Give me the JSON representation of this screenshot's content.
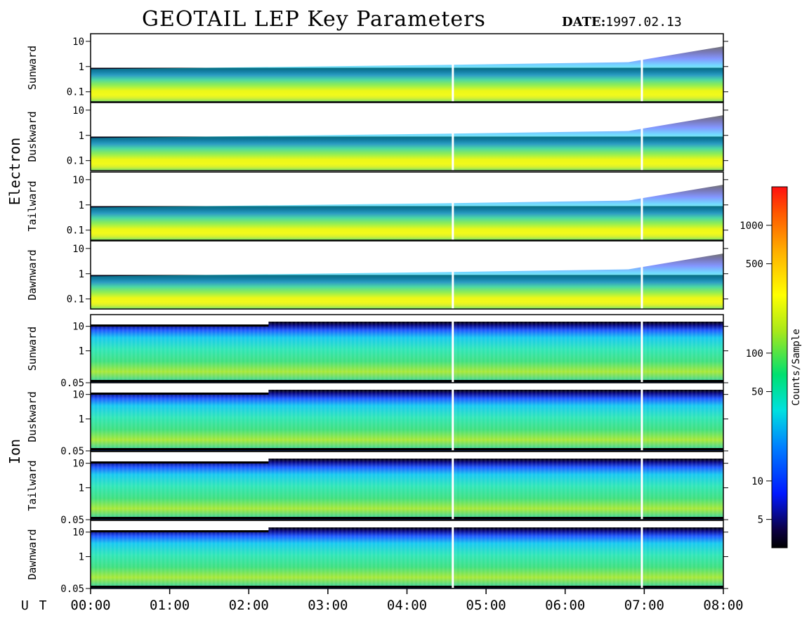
{
  "header": {
    "title": "GEOTAIL LEP Key Parameters",
    "date_label": "DATE:",
    "date_value": "1997.02.13"
  },
  "chart_data": {
    "type": "heatmap",
    "title": "GEOTAIL LEP Key Parameters",
    "x_axis": {
      "label": "U T",
      "ticks": [
        "00:00",
        "01:00",
        "02:00",
        "03:00",
        "04:00",
        "05:00",
        "06:00",
        "07:00",
        "08:00"
      ],
      "range_hours": [
        0,
        8
      ]
    },
    "groups": [
      {
        "name": "Electron",
        "y_ticks": [
          "10",
          "1",
          "0.1"
        ],
        "y_range": [
          0.04,
          20
        ],
        "y_scale": "log",
        "panels": [
          "Sunward",
          "Duskward",
          "Tailward",
          "Dawnward"
        ]
      },
      {
        "name": "Ion",
        "y_ticks": [
          "10",
          "1",
          "0.05"
        ],
        "y_range": [
          0.05,
          30
        ],
        "y_scale": "log",
        "panels": [
          "Sunward",
          "Duskward",
          "Tailward",
          "Dawnward"
        ]
      }
    ],
    "data_gaps_hours": [
      4.58,
      6.97
    ],
    "colorbar": {
      "label": "Counts/Sample",
      "scale": "log",
      "range": [
        3,
        2000
      ],
      "ticks": [
        "1000",
        "500",
        "100",
        "50",
        "10",
        "5"
      ],
      "tick_values": [
        1000,
        500,
        100,
        50,
        10,
        5
      ]
    }
  }
}
